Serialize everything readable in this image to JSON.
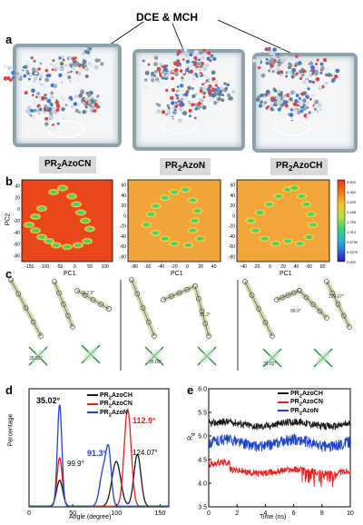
{
  "panel_a": {
    "letter": "a",
    "solvent_label": "DCE & MCH",
    "box_labels": [
      {
        "prefix": "PR",
        "sub": "2",
        "suffix": "AzoCN"
      },
      {
        "prefix": "PR",
        "sub": "2",
        "suffix": "AzoN"
      },
      {
        "prefix": "PR",
        "sub": "2",
        "suffix": "AzoCH"
      }
    ]
  },
  "panel_b": {
    "letter": "b",
    "ylabel": "PC2",
    "xlabel": "PC1",
    "colorbar_ticks": [
      "3.500",
      "3.063",
      "2.625",
      "2.188",
      "1.750",
      "1.313",
      "0.8750",
      "0.4375",
      "0.000"
    ],
    "maps": [
      {
        "xticks": [
          "-150",
          "-100",
          "-50",
          "0",
          "50",
          "100"
        ],
        "yticks": [
          "40",
          "20",
          "0",
          "-20",
          "-40",
          "-60",
          "-80"
        ]
      },
      {
        "xticks": [
          "-80",
          "-60",
          "-40",
          "-20",
          "0",
          "20",
          "40"
        ],
        "yticks": [
          "60",
          "40",
          "20",
          "0",
          "-20",
          "-40",
          "-60",
          "-80"
        ]
      },
      {
        "xticks": [
          "-40",
          "-20",
          "0",
          "20",
          "40",
          "60",
          "80"
        ],
        "yticks": [
          "60",
          "40",
          "20",
          "0",
          "-20",
          "-40",
          "-60",
          "-80"
        ]
      }
    ]
  },
  "panel_c": {
    "letter": "c",
    "groups": [
      {
        "angles": [
          "35.02°",
          "112.9°"
        ]
      },
      {
        "angles": [
          "35.02°",
          "91.3°"
        ]
      },
      {
        "angles": [
          "35.02°",
          "99.9°",
          "124.07°"
        ]
      }
    ]
  },
  "colors": {
    "ch": "#1a1a1a",
    "cn": "#e8211f",
    "n": "#1f46c6"
  },
  "chart_data": [
    {
      "panel": "d",
      "type": "line",
      "xlabel": "Angle (degree)",
      "ylabel": "Percentage",
      "xlim": [
        0,
        160
      ],
      "xticks": [
        0,
        50,
        100,
        150
      ],
      "ylim": [
        0,
        1
      ],
      "legend_placement": "top-right",
      "annotations": [
        {
          "text": "35.02°",
          "color": "#000000"
        },
        {
          "text": "112.9°",
          "color": "#e8211f"
        },
        {
          "text": "91.3°",
          "color": "#1f46c6"
        },
        {
          "text": "99.9°",
          "color": "#000000"
        },
        {
          "text": "124.07°",
          "color": "#000000"
        }
      ],
      "series": [
        {
          "name": "PR2AzoCH",
          "legend": {
            "prefix": "PR",
            "sub": "2",
            "suffix": "AzoCH"
          },
          "color": "#1a1a1a",
          "peaks": [
            {
              "x": 35.02,
              "y": 0.22,
              "w": 3.5
            },
            {
              "x": 99.9,
              "y": 0.38,
              "w": 5
            },
            {
              "x": 124.07,
              "y": 0.44,
              "w": 4
            }
          ]
        },
        {
          "name": "PR2AzoCN",
          "legend": {
            "prefix": "PR",
            "sub": "2",
            "suffix": "AzoCN"
          },
          "color": "#e8211f",
          "peaks": [
            {
              "x": 35.02,
              "y": 0.41,
              "w": 3
            },
            {
              "x": 112.9,
              "y": 0.82,
              "w": 4
            }
          ]
        },
        {
          "name": "PR2AzoN",
          "legend": {
            "prefix": "PR",
            "sub": "2",
            "suffix": "AzoN"
          },
          "color": "#1f46c6",
          "peaks": [
            {
              "x": 35.02,
              "y": 0.86,
              "w": 2.6
            },
            {
              "x": 85,
              "y": 0.3,
              "w": 4
            },
            {
              "x": 91.3,
              "y": 0.42,
              "w": 3
            }
          ]
        }
      ]
    },
    {
      "panel": "e",
      "type": "line",
      "xlabel": "Time (ns)",
      "ylabel": "R",
      "ylabel_sub": "g",
      "xlim": [
        0,
        10
      ],
      "xticks": [
        0,
        2,
        4,
        6,
        8,
        10
      ],
      "ylim": [
        3.5,
        6.0
      ],
      "yticks": [
        3.5,
        4.0,
        4.5,
        5.0,
        5.5,
        6.0
      ],
      "legend_placement": "top-right",
      "series": [
        {
          "name": "PR2AzoCH",
          "legend": {
            "prefix": "PR",
            "sub": "2",
            "suffix": "AzoCH"
          },
          "color": "#1a1a1a",
          "mean": 5.25,
          "noise": 0.08
        },
        {
          "name": "PR2AzoCN",
          "legend": {
            "prefix": "PR",
            "sub": "2",
            "suffix": "AzoCN"
          },
          "color": "#e8211f",
          "mean": 4.25,
          "noise": 0.07
        },
        {
          "name": "PR2AzoN",
          "legend": {
            "prefix": "PR",
            "sub": "2",
            "suffix": "AzoN"
          },
          "color": "#1f46c6",
          "mean": 4.85,
          "noise": 0.12
        }
      ]
    }
  ]
}
